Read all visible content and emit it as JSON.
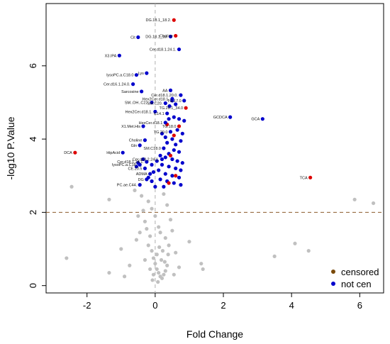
{
  "chart_data": {
    "type": "scatter",
    "title": "",
    "xlabel": "Fold Change",
    "ylabel": "-log10 P.Value",
    "xlim": [
      -3.2,
      6.7
    ],
    "ylim": [
      -0.2,
      7.7
    ],
    "x_ticks": [
      "-2",
      "0",
      "2",
      "4",
      "6"
    ],
    "y_ticks": [
      "0",
      "2",
      "4",
      "6"
    ],
    "threshold_y": 2,
    "colors": {
      "censored": "#7a4a0a",
      "not_cen": "#0000cc",
      "red": "#dd0000",
      "grey": "#c0c0c0",
      "vline": "#b0b0b0",
      "hline": "#8b5a2b"
    },
    "legend": {
      "position": "bottom-right",
      "entries": [
        {
          "name": "censored",
          "color": "#7a4a0a"
        },
        {
          "name": "not cen",
          "color": "#0000cc"
        }
      ]
    },
    "labeled_points": [
      {
        "label": "DG.18.1_18.2.",
        "x": 0.55,
        "y": 7.25,
        "color": "red"
      },
      {
        "label": "Cit",
        "x": -0.5,
        "y": 6.78,
        "color": "blue"
      },
      {
        "label": "DG.18.1_18.",
        "x": 0.45,
        "y": 6.8,
        "color": "blue"
      },
      {
        "label": "Choline",
        "x": 0.6,
        "y": 6.82,
        "color": "red"
      },
      {
        "label": "Cer.d18.1.24.1.",
        "x": 0.7,
        "y": 6.45,
        "color": "blue"
      },
      {
        "label": "X3.IPA",
        "x": -1.05,
        "y": 6.28,
        "color": "blue"
      },
      {
        "label": "lysoPC.a.C18.0",
        "x": -0.55,
        "y": 5.75,
        "color": "blue"
      },
      {
        "label": "Lys",
        "x": -0.25,
        "y": 5.8,
        "color": "blue"
      },
      {
        "label": "Cer.d16.1.24.0.",
        "x": -0.65,
        "y": 5.5,
        "color": "blue"
      },
      {
        "label": "Sarcosine",
        "x": -0.4,
        "y": 5.3,
        "color": "blue"
      },
      {
        "label": "AA",
        "x": 0.45,
        "y": 5.33,
        "color": "blue"
      },
      {
        "label": "Cer.d18.1.20.0.",
        "x": 0.75,
        "y": 5.2,
        "color": "blue"
      },
      {
        "label": "Hex2Cer.d18.1.",
        "x": 0.5,
        "y": 5.1,
        "color": "blue"
      },
      {
        "label": "TG.17.0",
        "x": 0.85,
        "y": 5.05,
        "color": "blue"
      },
      {
        "label": "SM..OH..C22.",
        "x": -0.1,
        "y": 5.0,
        "color": "blue"
      },
      {
        "label": "SM.C20.",
        "x": 0.3,
        "y": 4.98,
        "color": "blue"
      },
      {
        "label": "TG.20.1_34.0",
        "x": 0.9,
        "y": 4.85,
        "color": "red"
      },
      {
        "label": "Hex2Cer.d18.1.",
        "x": 0.0,
        "y": 4.75,
        "color": "blue"
      },
      {
        "label": "C14.1",
        "x": 0.35,
        "y": 4.7,
        "color": "blue"
      },
      {
        "label": "GCDCA",
        "x": 2.2,
        "y": 4.6,
        "color": "blue"
      },
      {
        "label": "GCA",
        "x": 3.15,
        "y": 4.55,
        "color": "blue"
      },
      {
        "label": "HexCer.d18.1",
        "x": 0.3,
        "y": 4.45,
        "color": "blue"
      },
      {
        "label": "X1.Met.His",
        "x": -0.35,
        "y": 4.35,
        "color": "blue"
      },
      {
        "label": "TG.18.0",
        "x": 0.7,
        "y": 4.35,
        "color": "red"
      },
      {
        "label": "TG.20.0",
        "x": 0.45,
        "y": 4.2,
        "color": "blue"
      },
      {
        "label": "Choline",
        "x": -0.3,
        "y": 3.97,
        "color": "blue"
      },
      {
        "label": "Gln",
        "x": -0.45,
        "y": 3.83,
        "color": "blue"
      },
      {
        "label": "SM.C18.0",
        "x": 0.25,
        "y": 3.75,
        "color": "blue"
      },
      {
        "label": "HipAcid",
        "x": -0.95,
        "y": 3.63,
        "color": "blue"
      },
      {
        "label": "DCA",
        "x": -2.35,
        "y": 3.63,
        "color": "red"
      },
      {
        "label": "Cer.d18.2.24.1.",
        "x": 0.2,
        "y": 3.45,
        "color": "blue"
      },
      {
        "label": "Cer.d18.1.24.1.",
        "x": -0.25,
        "y": 3.38,
        "color": "blue"
      },
      {
        "label": "lysoPC.a.C18.",
        "x": -0.45,
        "y": 3.3,
        "color": "blue"
      },
      {
        "label": "CE.20.5",
        "x": -0.3,
        "y": 3.2,
        "color": "blue"
      },
      {
        "label": "ADMA",
        "x": -0.15,
        "y": 3.05,
        "color": "blue"
      },
      {
        "label": "DG",
        "x": -0.25,
        "y": 2.9,
        "color": "blue"
      },
      {
        "label": "TCA",
        "x": 4.55,
        "y": 2.95,
        "color": "red"
      },
      {
        "label": "PC.ae.C44.",
        "x": -0.45,
        "y": 2.75,
        "color": "blue"
      }
    ],
    "unlabeled_points": [
      {
        "x": 0.5,
        "y": 5.05,
        "color": "blue"
      },
      {
        "x": 0.6,
        "y": 4.95,
        "color": "blue"
      },
      {
        "x": 0.42,
        "y": 4.9,
        "color": "blue"
      },
      {
        "x": 0.55,
        "y": 4.6,
        "color": "blue"
      },
      {
        "x": 0.7,
        "y": 4.55,
        "color": "blue"
      },
      {
        "x": 0.85,
        "y": 4.5,
        "color": "blue"
      },
      {
        "x": 0.4,
        "y": 4.55,
        "color": "blue"
      },
      {
        "x": 0.65,
        "y": 4.25,
        "color": "blue"
      },
      {
        "x": 0.8,
        "y": 4.15,
        "color": "blue"
      },
      {
        "x": 0.3,
        "y": 4.05,
        "color": "blue"
      },
      {
        "x": 0.5,
        "y": 4.0,
        "color": "blue"
      },
      {
        "x": 0.75,
        "y": 3.95,
        "color": "blue"
      },
      {
        "x": 0.2,
        "y": 4.15,
        "color": "blue"
      },
      {
        "x": 0.35,
        "y": 3.9,
        "color": "blue"
      },
      {
        "x": 0.6,
        "y": 3.85,
        "color": "blue"
      },
      {
        "x": 0.55,
        "y": 3.7,
        "color": "blue"
      },
      {
        "x": 0.7,
        "y": 3.65,
        "color": "blue"
      },
      {
        "x": 0.4,
        "y": 3.6,
        "color": "blue"
      },
      {
        "x": 0.15,
        "y": 3.55,
        "color": "blue"
      },
      {
        "x": 0.3,
        "y": 3.5,
        "color": "blue"
      },
      {
        "x": 0.5,
        "y": 3.45,
        "color": "blue"
      },
      {
        "x": 0.65,
        "y": 3.4,
        "color": "blue"
      },
      {
        "x": 0.8,
        "y": 3.35,
        "color": "blue"
      },
      {
        "x": 0.05,
        "y": 3.4,
        "color": "blue"
      },
      {
        "x": -0.1,
        "y": 3.3,
        "color": "blue"
      },
      {
        "x": 0.2,
        "y": 3.3,
        "color": "blue"
      },
      {
        "x": 0.4,
        "y": 3.25,
        "color": "blue"
      },
      {
        "x": 0.6,
        "y": 3.2,
        "color": "blue"
      },
      {
        "x": 0.75,
        "y": 3.15,
        "color": "blue"
      },
      {
        "x": 0.1,
        "y": 3.15,
        "color": "blue"
      },
      {
        "x": -0.05,
        "y": 3.1,
        "color": "blue"
      },
      {
        "x": 0.3,
        "y": 3.05,
        "color": "blue"
      },
      {
        "x": 0.5,
        "y": 3.0,
        "color": "blue"
      },
      {
        "x": 0.7,
        "y": 2.95,
        "color": "blue"
      },
      {
        "x": 0.15,
        "y": 2.9,
        "color": "blue"
      },
      {
        "x": -0.1,
        "y": 2.85,
        "color": "blue"
      },
      {
        "x": 0.35,
        "y": 2.85,
        "color": "blue"
      },
      {
        "x": 0.55,
        "y": 2.8,
        "color": "blue"
      },
      {
        "x": 0.75,
        "y": 2.75,
        "color": "blue"
      },
      {
        "x": 0.0,
        "y": 2.7,
        "color": "blue"
      },
      {
        "x": 0.25,
        "y": 2.7,
        "color": "blue"
      },
      {
        "x": -0.2,
        "y": 2.95,
        "color": "blue"
      },
      {
        "x": -0.35,
        "y": 3.45,
        "color": "blue"
      },
      {
        "x": -0.5,
        "y": 3.35,
        "color": "blue"
      },
      {
        "x": -0.55,
        "y": 3.25,
        "color": "blue"
      },
      {
        "x": 0.45,
        "y": 3.55,
        "color": "red"
      },
      {
        "x": 0.6,
        "y": 3.0,
        "color": "red"
      },
      {
        "x": 0.4,
        "y": 2.8,
        "color": "red"
      },
      {
        "x": 0.55,
        "y": 4.1,
        "color": "red"
      },
      {
        "x": 0.35,
        "y": 4.4,
        "color": "red"
      },
      {
        "x": -2.45,
        "y": 2.7,
        "color": "grey"
      },
      {
        "x": -1.35,
        "y": 2.35,
        "color": "grey"
      },
      {
        "x": -2.6,
        "y": 0.75,
        "color": "grey"
      },
      {
        "x": -1.35,
        "y": 0.35,
        "color": "grey"
      },
      {
        "x": -0.55,
        "y": 1.25,
        "color": "grey"
      },
      {
        "x": -1.0,
        "y": 1.0,
        "color": "grey"
      },
      {
        "x": -0.75,
        "y": 0.55,
        "color": "grey"
      },
      {
        "x": -0.9,
        "y": 0.25,
        "color": "grey"
      },
      {
        "x": -0.4,
        "y": 2.45,
        "color": "grey"
      },
      {
        "x": -0.35,
        "y": 2.05,
        "color": "grey"
      },
      {
        "x": -0.3,
        "y": 1.75,
        "color": "grey"
      },
      {
        "x": -0.25,
        "y": 1.55,
        "color": "grey"
      },
      {
        "x": -0.15,
        "y": 1.35,
        "color": "grey"
      },
      {
        "x": -0.2,
        "y": 1.1,
        "color": "grey"
      },
      {
        "x": -0.1,
        "y": 0.95,
        "color": "grey"
      },
      {
        "x": -0.05,
        "y": 0.75,
        "color": "grey"
      },
      {
        "x": 0.0,
        "y": 0.6,
        "color": "grey"
      },
      {
        "x": 0.05,
        "y": 0.45,
        "color": "grey"
      },
      {
        "x": 0.1,
        "y": 0.35,
        "color": "grey"
      },
      {
        "x": 0.15,
        "y": 0.25,
        "color": "grey"
      },
      {
        "x": 0.2,
        "y": 0.2,
        "color": "grey"
      },
      {
        "x": 0.25,
        "y": 0.3,
        "color": "grey"
      },
      {
        "x": 0.3,
        "y": 0.4,
        "color": "grey"
      },
      {
        "x": 0.35,
        "y": 0.55,
        "color": "grey"
      },
      {
        "x": -0.05,
        "y": 0.3,
        "color": "grey"
      },
      {
        "x": -0.15,
        "y": 0.45,
        "color": "grey"
      },
      {
        "x": 0.05,
        "y": 0.85,
        "color": "grey"
      },
      {
        "x": 0.12,
        "y": 1.05,
        "color": "grey"
      },
      {
        "x": 0.18,
        "y": 0.7,
        "color": "grey"
      },
      {
        "x": 0.22,
        "y": 0.95,
        "color": "grey"
      },
      {
        "x": 0.28,
        "y": 0.65,
        "color": "grey"
      },
      {
        "x": -0.08,
        "y": 0.15,
        "color": "grey"
      },
      {
        "x": 0.08,
        "y": 0.1,
        "color": "grey"
      },
      {
        "x": 0.3,
        "y": 1.3,
        "color": "grey"
      },
      {
        "x": 0.4,
        "y": 1.1,
        "color": "grey"
      },
      {
        "x": 0.5,
        "y": 1.5,
        "color": "grey"
      },
      {
        "x": 0.45,
        "y": 1.8,
        "color": "grey"
      },
      {
        "x": 0.35,
        "y": 2.2,
        "color": "grey"
      },
      {
        "x": 0.25,
        "y": 2.5,
        "color": "grey"
      },
      {
        "x": -0.2,
        "y": 2.3,
        "color": "grey"
      },
      {
        "x": -0.45,
        "y": 1.45,
        "color": "grey"
      },
      {
        "x": 0.6,
        "y": 0.9,
        "color": "grey"
      },
      {
        "x": 0.7,
        "y": 0.5,
        "color": "grey"
      },
      {
        "x": 0.55,
        "y": 0.3,
        "color": "grey"
      },
      {
        "x": 1.35,
        "y": 0.6,
        "color": "grey"
      },
      {
        "x": 1.4,
        "y": 0.45,
        "color": "grey"
      },
      {
        "x": 1.0,
        "y": 1.2,
        "color": "grey"
      },
      {
        "x": 3.5,
        "y": 0.8,
        "color": "grey"
      },
      {
        "x": 4.1,
        "y": 1.15,
        "color": "grey"
      },
      {
        "x": 4.5,
        "y": 0.95,
        "color": "grey"
      },
      {
        "x": 5.85,
        "y": 2.35,
        "color": "grey"
      },
      {
        "x": 6.4,
        "y": 2.25,
        "color": "grey"
      },
      {
        "x": 0.1,
        "y": 1.6,
        "color": "grey"
      },
      {
        "x": -0.1,
        "y": 2.1,
        "color": "grey"
      },
      {
        "x": 0.0,
        "y": 1.9,
        "color": "grey"
      },
      {
        "x": 0.15,
        "y": 1.45,
        "color": "grey"
      },
      {
        "x": -0.3,
        "y": 0.7,
        "color": "grey"
      },
      {
        "x": 0.38,
        "y": 0.85,
        "color": "grey"
      },
      {
        "x": -0.6,
        "y": 2.6,
        "color": "grey"
      },
      {
        "x": -0.5,
        "y": 1.9,
        "color": "grey"
      }
    ]
  }
}
